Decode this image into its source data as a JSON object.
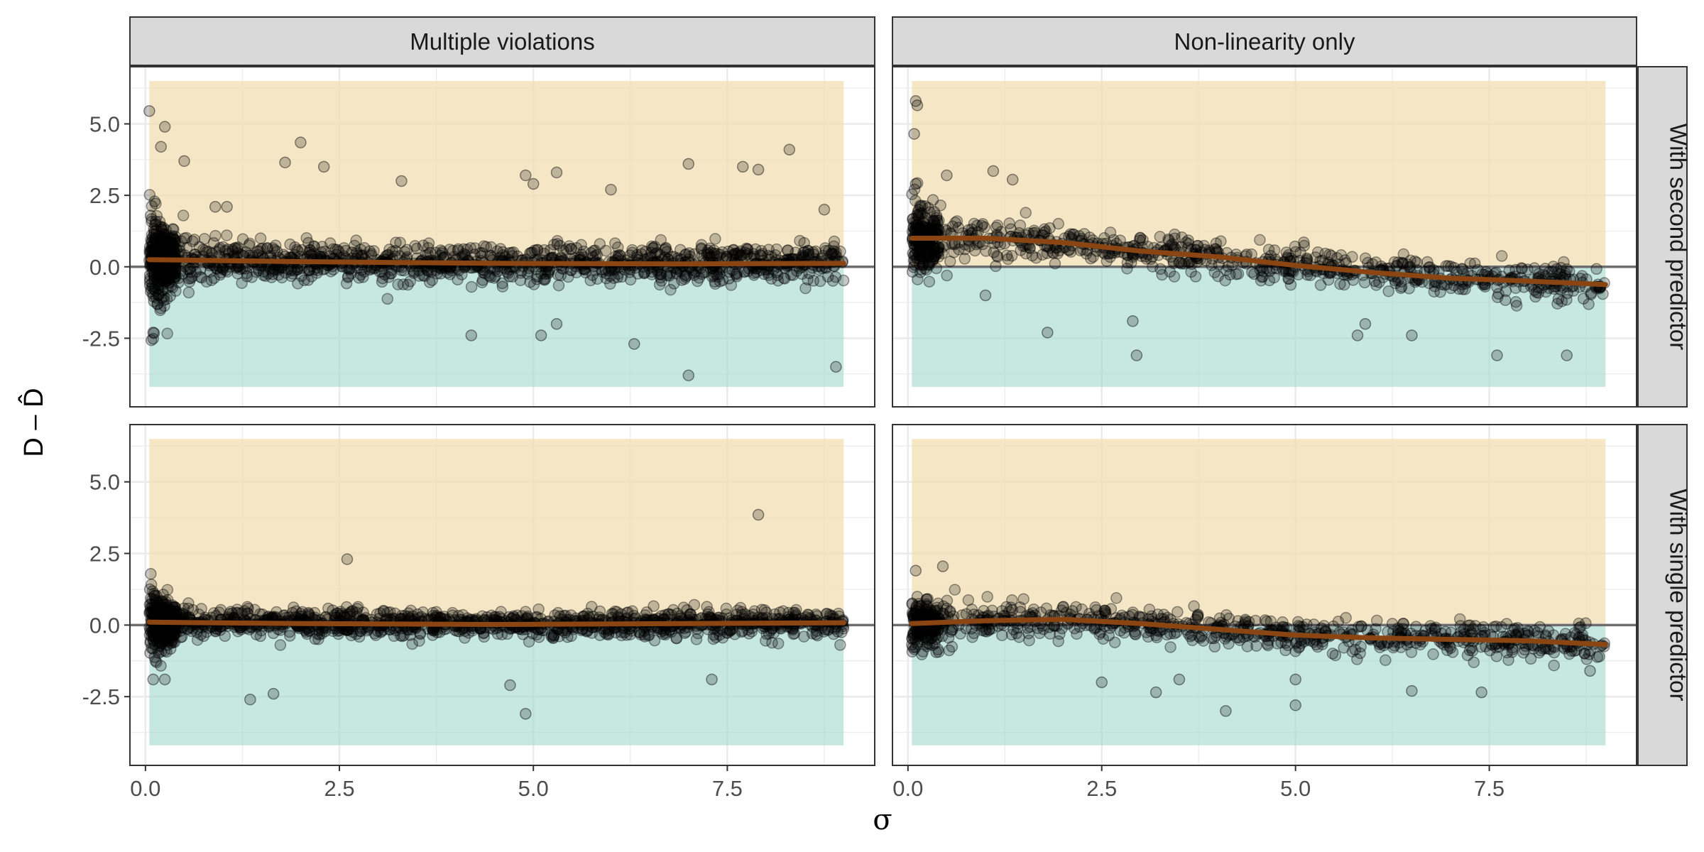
{
  "colors": {
    "upper_band": "#f1deb0",
    "lower_band": "#a5d8ce",
    "points": "#000000",
    "smooth_line": "#8b4513",
    "zero_line": "#6e6e6e",
    "strip_fill": "#d9d9d9",
    "grid": "#ebebeb"
  },
  "chart_data": {
    "type": "scatter",
    "xlabel": "σ",
    "ylabel": "D – D̂",
    "xlim": [
      -0.2,
      9.4
    ],
    "ylim": [
      -4.9,
      7.0
    ],
    "x_ticks": [
      "0.0",
      "2.5",
      "5.0",
      "7.5"
    ],
    "x_tick_values": [
      0,
      2.5,
      5,
      7.5
    ],
    "y_ticks": [
      "5.0",
      "2.5",
      "0.0",
      "-2.5"
    ],
    "y_tick_values": [
      5,
      2.5,
      0,
      -2.5
    ],
    "grid": true,
    "bands": {
      "x_range": [
        0.05,
        9.0
      ],
      "upper": [
        0,
        6.5
      ],
      "lower": [
        -4.2,
        0
      ]
    },
    "columns": [
      "Multiple violations",
      "Non-linearity only"
    ],
    "rows": [
      "With second predictor",
      "With single predictor"
    ],
    "panels": [
      {
        "column": "Multiple violations",
        "row": "With second predictor",
        "trend": [
          [
            0.05,
            0.25
          ],
          [
            2.0,
            0.18
          ],
          [
            4.5,
            0.12
          ],
          [
            7.0,
            0.1
          ],
          [
            9.0,
            0.12
          ]
        ],
        "spread": {
          "base": 0.6,
          "near_zero_boost": 1.6,
          "decay": 0.25
        },
        "outliers": [
          [
            0.05,
            5.45
          ],
          [
            0.25,
            4.9
          ],
          [
            0.2,
            4.2
          ],
          [
            0.5,
            3.7
          ],
          [
            1.8,
            3.65
          ],
          [
            2.0,
            4.35
          ],
          [
            2.3,
            3.5
          ],
          [
            3.3,
            3.0
          ],
          [
            4.9,
            3.2
          ],
          [
            5.0,
            2.9
          ],
          [
            5.3,
            3.3
          ],
          [
            7.0,
            3.6
          ],
          [
            7.7,
            3.5
          ],
          [
            7.9,
            3.4
          ],
          [
            8.3,
            4.1
          ],
          [
            6.3,
            -2.7
          ],
          [
            7.0,
            -3.8
          ],
          [
            8.9,
            -3.5
          ],
          [
            4.2,
            -2.4
          ],
          [
            5.1,
            -2.4
          ],
          [
            5.3,
            -2.0
          ],
          [
            0.1,
            -2.3
          ],
          [
            0.9,
            2.1
          ],
          [
            1.05,
            2.1
          ],
          [
            6.0,
            2.7
          ],
          [
            8.75,
            2.0
          ]
        ],
        "n": 1500
      },
      {
        "column": "Non-linearity only",
        "row": "With second predictor",
        "trend": [
          [
            0.05,
            1.0
          ],
          [
            1.0,
            1.0
          ],
          [
            2.0,
            0.85
          ],
          [
            3.0,
            0.55
          ],
          [
            4.0,
            0.35
          ],
          [
            5.0,
            0.05
          ],
          [
            6.0,
            -0.2
          ],
          [
            7.0,
            -0.4
          ],
          [
            8.0,
            -0.5
          ],
          [
            9.0,
            -0.62
          ]
        ],
        "spread": {
          "base": 0.55,
          "near_zero_boost": 0.8,
          "decay": 0.6
        },
        "outliers": [
          [
            0.1,
            5.8
          ],
          [
            0.12,
            5.65
          ],
          [
            0.08,
            4.65
          ],
          [
            0.1,
            2.9
          ],
          [
            0.5,
            3.2
          ],
          [
            1.1,
            3.35
          ],
          [
            1.35,
            3.05
          ],
          [
            2.9,
            -1.9
          ],
          [
            2.95,
            -3.1
          ],
          [
            7.6,
            -3.1
          ],
          [
            8.5,
            -3.1
          ],
          [
            6.5,
            -2.4
          ],
          [
            5.8,
            -2.4
          ],
          [
            1.8,
            -2.3
          ],
          [
            1.0,
            -1.0
          ],
          [
            5.9,
            -2.0
          ]
        ],
        "n": 900
      },
      {
        "column": "Multiple violations",
        "row": "With single predictor",
        "trend": [
          [
            0.05,
            0.1
          ],
          [
            2.0,
            0.05
          ],
          [
            4.5,
            0.02
          ],
          [
            7.0,
            0.05
          ],
          [
            9.0,
            0.08
          ]
        ],
        "spread": {
          "base": 0.4,
          "near_zero_boost": 0.9,
          "decay": 0.25
        },
        "outliers": [
          [
            2.6,
            2.3
          ],
          [
            7.9,
            3.85
          ],
          [
            4.9,
            -3.1
          ],
          [
            4.7,
            -2.1
          ],
          [
            1.35,
            -2.6
          ],
          [
            1.65,
            -2.4
          ],
          [
            7.3,
            -1.9
          ],
          [
            0.1,
            -1.9
          ],
          [
            0.25,
            -1.9
          ]
        ],
        "n": 1500
      },
      {
        "column": "Non-linearity only",
        "row": "With single predictor",
        "trend": [
          [
            0.05,
            0.05
          ],
          [
            1.0,
            0.15
          ],
          [
            2.0,
            0.2
          ],
          [
            3.0,
            0.05
          ],
          [
            4.0,
            -0.15
          ],
          [
            5.0,
            -0.35
          ],
          [
            6.0,
            -0.45
          ],
          [
            7.0,
            -0.5
          ],
          [
            8.0,
            -0.55
          ],
          [
            9.0,
            -0.68
          ]
        ],
        "spread": {
          "base": 0.5,
          "near_zero_boost": 0.4,
          "decay": 0.5
        },
        "outliers": [
          [
            0.1,
            1.9
          ],
          [
            0.45,
            2.05
          ],
          [
            4.1,
            -3.0
          ],
          [
            5.0,
            -2.8
          ],
          [
            5.0,
            -1.9
          ],
          [
            3.5,
            -1.9
          ],
          [
            2.5,
            -2.0
          ],
          [
            6.5,
            -2.3
          ],
          [
            7.4,
            -2.35
          ],
          [
            3.2,
            -2.35
          ],
          [
            8.8,
            -1.6
          ]
        ],
        "n": 900
      }
    ]
  }
}
